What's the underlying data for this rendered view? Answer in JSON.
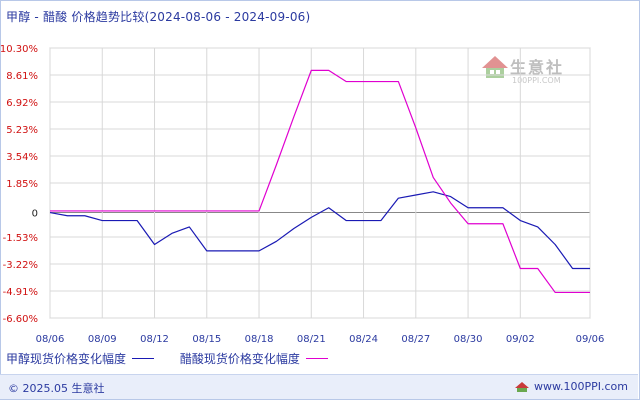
{
  "title": "甲醇 - 醋酸 价格趋势比较(2024-08-06 - 2024-09-06)",
  "footer": {
    "copyright": "© 2025.05 生意社",
    "url": "www.100PPI.com"
  },
  "watermark": {
    "name": "生意社",
    "url": "100PPI.COM"
  },
  "colors": {
    "series_methanol": "#1a1ab4",
    "series_acetic": "#e000d0",
    "ytick_label": "#d01010",
    "xtick_label": "#2b3aa0",
    "grid": "#d8d8d8",
    "zero_line": "#888888"
  },
  "chart_data": {
    "type": "line",
    "title": "甲醇 - 醋酸 价格趋势比较(2024-08-06 - 2024-09-06)",
    "xlabel": "",
    "ylabel": "",
    "x_dates": [
      "2024-08-06",
      "2024-08-07",
      "2024-08-08",
      "2024-08-09",
      "2024-08-10",
      "2024-08-11",
      "2024-08-12",
      "2024-08-13",
      "2024-08-14",
      "2024-08-15",
      "2024-08-16",
      "2024-08-17",
      "2024-08-18",
      "2024-08-19",
      "2024-08-20",
      "2024-08-21",
      "2024-08-22",
      "2024-08-23",
      "2024-08-24",
      "2024-08-25",
      "2024-08-26",
      "2024-08-27",
      "2024-08-28",
      "2024-08-29",
      "2024-08-30",
      "2024-08-31",
      "2024-09-01",
      "2024-09-02",
      "2024-09-03",
      "2024-09-04",
      "2024-09-05",
      "2024-09-06"
    ],
    "xticks": [
      "08/06",
      "08/09",
      "08/12",
      "08/15",
      "08/18",
      "08/21",
      "08/24",
      "08/27",
      "08/30",
      "09/02",
      "09/06"
    ],
    "xtick_dates": [
      "2024-08-06",
      "2024-08-09",
      "2024-08-12",
      "2024-08-15",
      "2024-08-18",
      "2024-08-21",
      "2024-08-24",
      "2024-08-27",
      "2024-08-30",
      "2024-09-02",
      "2024-09-06"
    ],
    "yticks": [
      "10.30%",
      "8.61%",
      "6.92%",
      "5.23%",
      "3.54%",
      "1.85%",
      "0",
      "-1.53%",
      "-3.22%",
      "-4.91%",
      "-6.60%"
    ],
    "ytick_values": [
      10.3,
      8.61,
      6.92,
      5.23,
      3.54,
      1.85,
      0,
      -1.53,
      -3.22,
      -4.91,
      -6.6
    ],
    "ylim": [
      -6.6,
      10.3
    ],
    "grid": true,
    "legend_position": "bottom-left",
    "series": [
      {
        "name": "甲醇现货价格变化幅度",
        "color": "#1a1ab4",
        "values": [
          0.0,
          -0.2,
          -0.2,
          -0.5,
          -0.5,
          -0.5,
          -2.0,
          -1.3,
          -0.9,
          -2.4,
          -2.4,
          -2.4,
          -2.4,
          -1.8,
          -1.0,
          -0.3,
          0.3,
          -0.5,
          -0.5,
          -0.5,
          0.9,
          1.1,
          1.3,
          1.0,
          0.3,
          0.3,
          0.3,
          -0.5,
          -0.9,
          -2.0,
          -3.5,
          -3.5
        ]
      },
      {
        "name": "醋酸现货价格变化幅度",
        "color": "#e000d0",
        "values": [
          0.1,
          0.1,
          0.1,
          0.1,
          0.1,
          0.1,
          0.1,
          0.1,
          0.1,
          0.1,
          0.1,
          0.1,
          0.1,
          3.0,
          6.0,
          8.9,
          8.9,
          8.2,
          8.2,
          8.2,
          8.2,
          5.3,
          2.2,
          0.6,
          -0.7,
          -0.7,
          -0.7,
          -3.5,
          -3.5,
          -5.0,
          -5.0,
          -5.0
        ]
      }
    ]
  }
}
